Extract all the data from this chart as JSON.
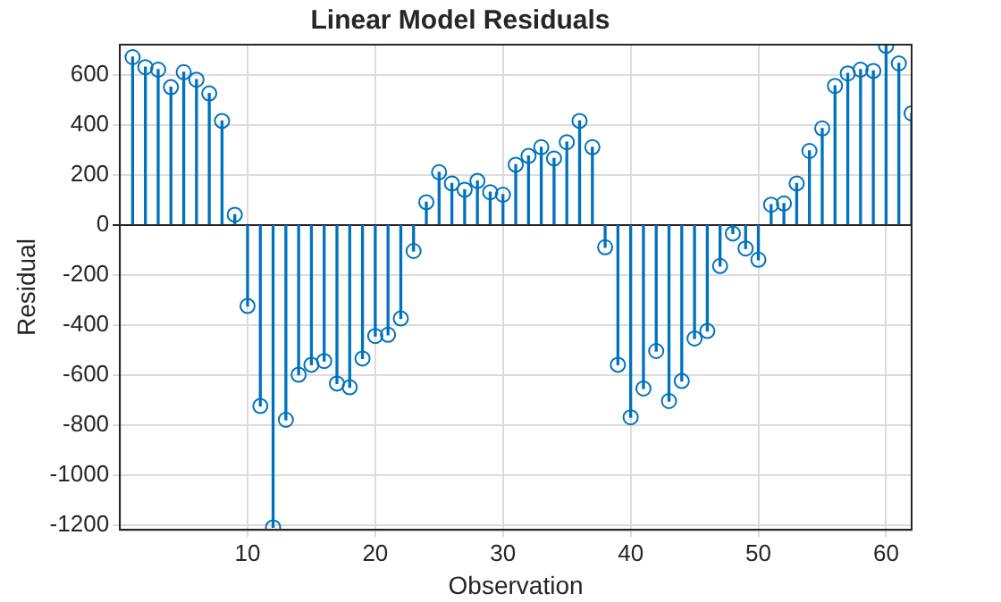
{
  "chart_data": {
    "type": "lollipop",
    "title": "Linear Model Residuals",
    "xlabel": "Observation",
    "ylabel": "Residual",
    "x": [
      1,
      2,
      3,
      4,
      5,
      6,
      7,
      8,
      9,
      10,
      11,
      12,
      13,
      14,
      15,
      16,
      17,
      18,
      19,
      20,
      21,
      22,
      23,
      24,
      25,
      26,
      27,
      28,
      29,
      30,
      31,
      32,
      33,
      34,
      35,
      36,
      37,
      38,
      39,
      40,
      41,
      42,
      43,
      44,
      45,
      46,
      47,
      48,
      49,
      50,
      51,
      52,
      53,
      54,
      55,
      56,
      57,
      58,
      59,
      60,
      61,
      62
    ],
    "series": [
      {
        "color": "#0072bd",
        "values": [
          670,
          630,
          620,
          550,
          610,
          580,
          525,
          415,
          40,
          -325,
          -725,
          -1210,
          -780,
          -600,
          -560,
          -545,
          -635,
          -650,
          -535,
          -445,
          -440,
          -375,
          -105,
          90,
          210,
          165,
          140,
          175,
          130,
          120,
          240,
          275,
          310,
          265,
          330,
          415,
          310,
          -90,
          -560,
          -770,
          -655,
          -505,
          -705,
          -625,
          -455,
          -425,
          -165,
          -35,
          -95,
          -140,
          80,
          85,
          165,
          295,
          385,
          555,
          605,
          620,
          615,
          715,
          645,
          445
        ]
      }
    ],
    "xlim": [
      0,
      62
    ],
    "ylim": [
      -1220,
      720
    ],
    "xticks": [
      10,
      20,
      30,
      40,
      50,
      60
    ],
    "yticks": [
      -1200,
      -1000,
      -800,
      -600,
      -400,
      -200,
      0,
      200,
      400,
      600
    ],
    "grid": true,
    "marker": "circle",
    "legend": false
  }
}
